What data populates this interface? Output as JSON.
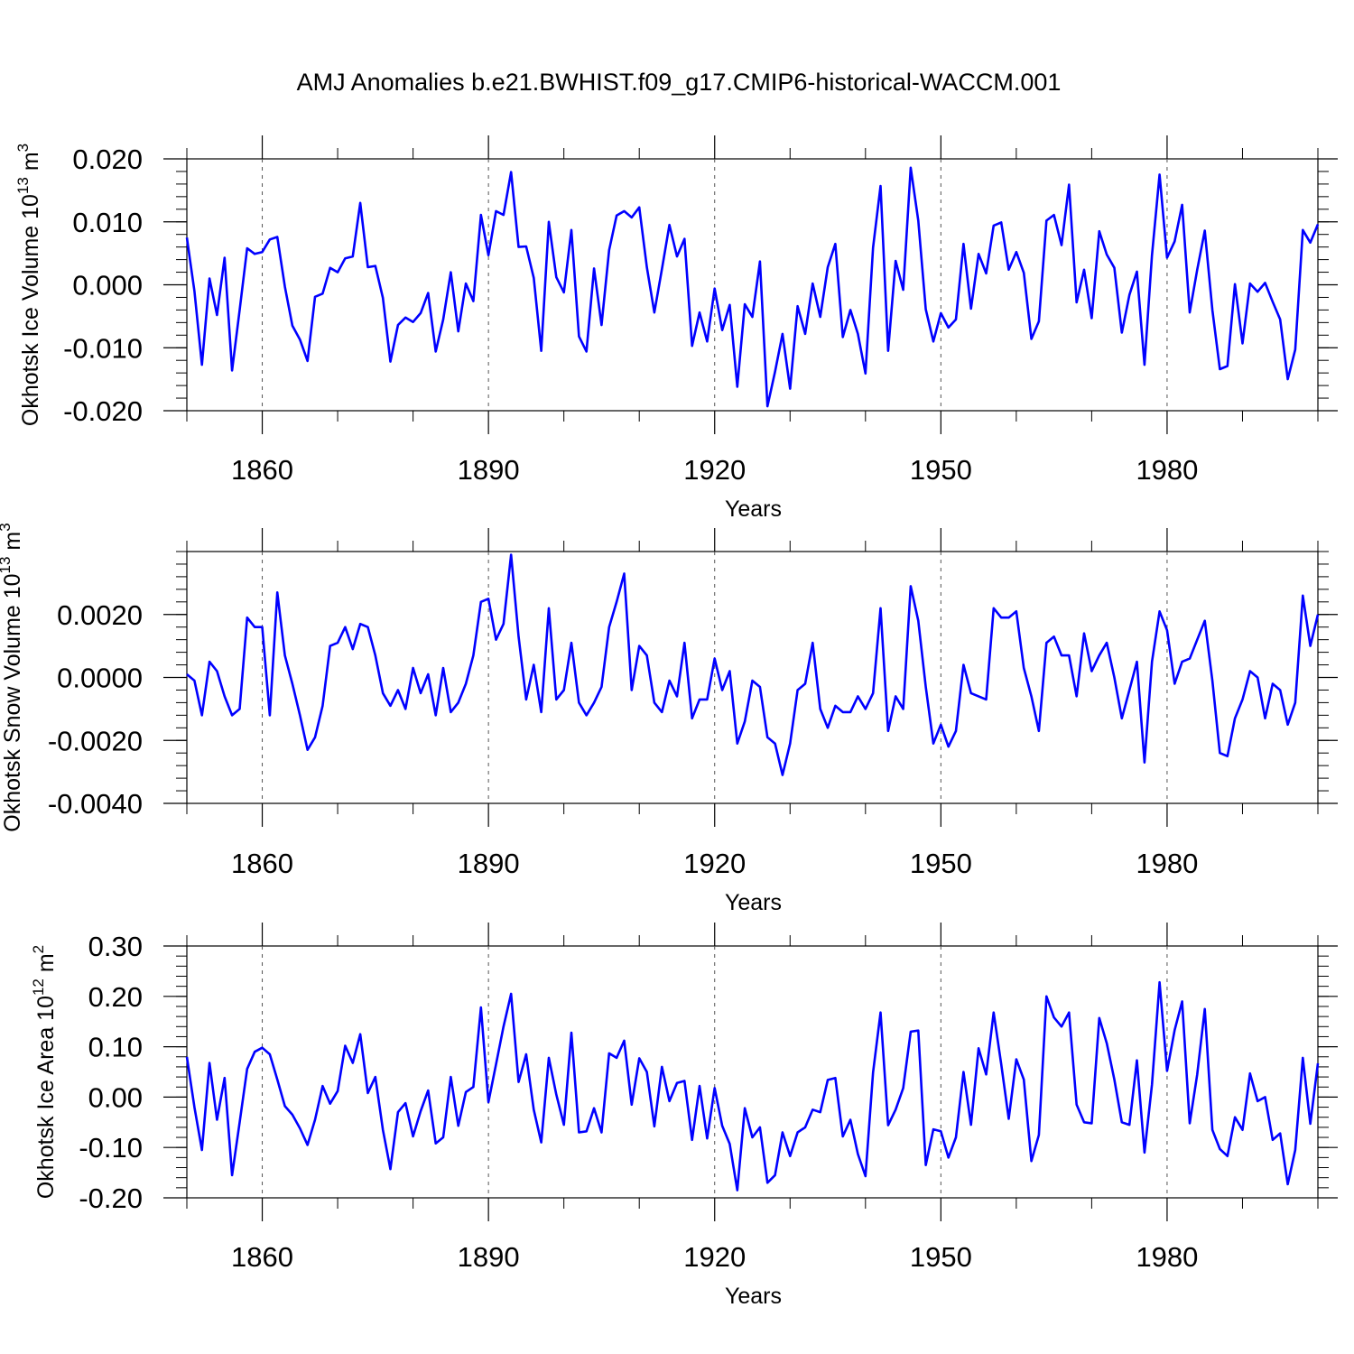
{
  "figure_title": "AMJ Anomalies b.e21.BWHIST.f09_g17.CMIP6-historical-WACCM.001",
  "line_color": "#0000ff",
  "chart_data": [
    {
      "type": "line",
      "ylabel": "Okhotsk Ice Volume",
      "ylabel_unit": "10",
      "ylabel_exp": "13",
      "ylabel_m": "m",
      "ylabel_mexp": "3",
      "xlabel": "Years",
      "xlim": [
        1850,
        2000
      ],
      "ylim": [
        -0.02,
        0.02
      ],
      "xticks": [
        1860,
        1890,
        1920,
        1950,
        1980
      ],
      "xtick_labels": [
        "1860",
        "1890",
        "1920",
        "1950",
        "1980"
      ],
      "yticks": [
        -0.02,
        -0.01,
        0.0,
        0.01,
        0.02
      ],
      "ytick_labels": [
        "-0.020",
        "-0.010",
        "0.000",
        "0.010",
        "0.020"
      ],
      "x_start": 1850,
      "values": [
        0.0075,
        -0.001,
        -0.0127,
        0.001,
        -0.0048,
        0.0043,
        -0.0136,
        -0.004,
        0.0058,
        0.0049,
        0.0052,
        0.0072,
        0.0076,
        -0.0003,
        -0.0065,
        -0.0087,
        -0.0121,
        -0.0019,
        -0.0014,
        0.0027,
        0.002,
        0.0042,
        0.0045,
        0.013,
        0.0028,
        0.003,
        -0.0021,
        -0.0122,
        -0.0064,
        -0.0052,
        -0.0059,
        -0.0045,
        -0.0013,
        -0.0106,
        -0.0055,
        0.002,
        -0.0074,
        0.0002,
        -0.0026,
        0.0111,
        0.0047,
        0.0117,
        0.0111,
        0.0179,
        0.006,
        0.0061,
        0.0011,
        -0.0105,
        0.01,
        0.0012,
        -0.0012,
        0.0087,
        -0.0082,
        -0.0106,
        0.0026,
        -0.0064,
        0.0055,
        0.011,
        0.0117,
        0.0107,
        0.0123,
        0.0028,
        -0.0044,
        0.0025,
        0.0095,
        0.0045,
        0.0073,
        -0.0097,
        -0.0044,
        -0.009,
        -0.0006,
        -0.0072,
        -0.0032,
        -0.0162,
        -0.0031,
        -0.0051,
        0.0037,
        -0.0193,
        -0.0138,
        -0.0078,
        -0.0165,
        -0.0034,
        -0.0078,
        0.0002,
        -0.0051,
        0.0028,
        0.0065,
        -0.0083,
        -0.004,
        -0.0078,
        -0.0141,
        0.0059,
        0.0157,
        -0.0105,
        0.0038,
        -0.0008,
        0.0186,
        0.0102,
        -0.0039,
        -0.009,
        -0.0045,
        -0.0068,
        -0.0055,
        0.0065,
        -0.0038,
        0.0049,
        0.0018,
        0.0094,
        0.0099,
        0.0024,
        0.0052,
        0.0019,
        -0.0086,
        -0.0058,
        0.0102,
        0.0111,
        0.0063,
        0.0159,
        -0.0028,
        0.0024,
        -0.0053,
        0.0085,
        0.0048,
        0.0027,
        -0.0076,
        -0.0016,
        0.0021,
        -0.0127,
        0.0047,
        0.0175,
        0.0043,
        0.0069,
        0.0127,
        -0.0044,
        0.0024,
        0.0086,
        -0.004,
        -0.0134,
        -0.0129,
        0.0001,
        -0.0093,
        0.0002,
        -0.0011,
        0.0003,
        -0.0027,
        -0.0055,
        -0.015,
        -0.0103,
        0.0087,
        0.0067,
        0.0096
      ]
    },
    {
      "type": "line",
      "ylabel": "Okhotsk Snow Volume",
      "ylabel_unit": "10",
      "ylabel_exp": "13",
      "ylabel_m": "m",
      "ylabel_mexp": "3",
      "xlabel": "Years",
      "xlim": [
        1850,
        2000
      ],
      "ylim": [
        -0.004,
        0.004
      ],
      "xticks": [
        1860,
        1890,
        1920,
        1950,
        1980
      ],
      "xtick_labels": [
        "1860",
        "1890",
        "1920",
        "1950",
        "1980"
      ],
      "yticks": [
        -0.004,
        -0.002,
        0.0,
        0.002
      ],
      "ytick_labels": [
        "-0.0040",
        "-0.0020",
        "0.0000",
        "0.0020"
      ],
      "x_start": 1850,
      "values": [
        0.0001,
        -0.0001,
        -0.0012,
        0.0005,
        0.0002,
        -0.0006,
        -0.0012,
        -0.001,
        0.0019,
        0.0016,
        0.0016,
        -0.0012,
        0.0027,
        0.0007,
        -0.0002,
        -0.0012,
        -0.0023,
        -0.0019,
        -0.0009,
        0.001,
        0.0011,
        0.0016,
        0.0009,
        0.0017,
        0.0016,
        0.0007,
        -0.0005,
        -0.0009,
        -0.0004,
        -0.001,
        0.0003,
        -0.0005,
        0.0001,
        -0.0012,
        0.0003,
        -0.0011,
        -0.0008,
        -0.0002,
        0.0007,
        0.0024,
        0.0025,
        0.0012,
        0.0017,
        0.0039,
        0.0013,
        -0.0007,
        0.0004,
        -0.0011,
        0.0022,
        -0.0007,
        -0.0004,
        0.0011,
        -0.0008,
        -0.0012,
        -0.0008,
        -0.0003,
        0.0016,
        0.0024,
        0.0033,
        -0.0004,
        0.001,
        0.0007,
        -0.0008,
        -0.0011,
        -0.0001,
        -0.0006,
        0.0011,
        -0.0013,
        -0.0007,
        -0.0007,
        0.0006,
        -0.0004,
        0.0002,
        -0.0021,
        -0.0014,
        -0.0001,
        -0.0003,
        -0.0019,
        -0.0021,
        -0.0031,
        -0.0021,
        -0.0004,
        -0.0002,
        0.0011,
        -0.001,
        -0.0016,
        -0.0009,
        -0.0011,
        -0.0011,
        -0.0006,
        -0.001,
        -0.0005,
        0.0022,
        -0.0017,
        -0.0006,
        -0.001,
        0.0029,
        0.0018,
        -0.0003,
        -0.0021,
        -0.0015,
        -0.0022,
        -0.0017,
        0.0004,
        -0.0005,
        -0.0006,
        -0.0007,
        0.0022,
        0.0019,
        0.0019,
        0.0021,
        0.0003,
        -0.0006,
        -0.0017,
        0.0011,
        0.0013,
        0.0007,
        0.0007,
        -0.0006,
        0.0014,
        0.0002,
        0.0007,
        0.0011,
        0.0,
        -0.0013,
        -0.0004,
        0.0005,
        -0.0027,
        0.0005,
        0.0021,
        0.0015,
        -0.0002,
        0.0005,
        0.0006,
        0.0012,
        0.0018,
        -0.0001,
        -0.0024,
        -0.0025,
        -0.0013,
        -0.0007,
        0.0002,
        0.0,
        -0.0013,
        -0.0002,
        -0.0004,
        -0.0015,
        -0.0008,
        0.0026,
        0.001,
        0.002
      ]
    },
    {
      "type": "line",
      "ylabel": "Okhotsk Ice Area",
      "ylabel_unit": "10",
      "ylabel_exp": "12",
      "ylabel_m": "m",
      "ylabel_mexp": "2",
      "xlabel": "Years",
      "xlim": [
        1850,
        2000
      ],
      "ylim": [
        -0.2,
        0.3
      ],
      "xticks": [
        1860,
        1890,
        1920,
        1950,
        1980
      ],
      "xtick_labels": [
        "1860",
        "1890",
        "1920",
        "1950",
        "1980"
      ],
      "yticks": [
        -0.2,
        -0.1,
        0.0,
        0.1,
        0.2,
        0.3
      ],
      "ytick_labels": [
        "-0.20",
        "-0.10",
        "0.00",
        "0.10",
        "0.20",
        "0.30"
      ],
      "x_start": 1850,
      "values": [
        0.08,
        -0.02,
        -0.105,
        0.068,
        -0.045,
        0.038,
        -0.155,
        -0.05,
        0.056,
        0.09,
        0.098,
        0.085,
        0.035,
        -0.018,
        -0.035,
        -0.062,
        -0.095,
        -0.045,
        0.022,
        -0.013,
        0.012,
        0.102,
        0.068,
        0.125,
        0.008,
        0.04,
        -0.065,
        -0.143,
        -0.03,
        -0.012,
        -0.078,
        -0.028,
        0.013,
        -0.092,
        -0.08,
        0.04,
        -0.057,
        0.01,
        0.02,
        0.178,
        -0.01,
        0.065,
        0.14,
        0.205,
        0.03,
        0.085,
        -0.025,
        -0.09,
        0.078,
        0.005,
        -0.055,
        0.128,
        -0.07,
        -0.068,
        -0.022,
        -0.07,
        0.087,
        0.078,
        0.112,
        -0.015,
        0.077,
        0.05,
        -0.058,
        0.06,
        -0.008,
        0.028,
        0.032,
        -0.085,
        0.022,
        -0.082,
        0.018,
        -0.057,
        -0.093,
        -0.185,
        -0.022,
        -0.08,
        -0.06,
        -0.17,
        -0.155,
        -0.07,
        -0.117,
        -0.07,
        -0.06,
        -0.025,
        -0.03,
        0.034,
        0.038,
        -0.078,
        -0.045,
        -0.113,
        -0.157,
        0.049,
        0.168,
        -0.056,
        -0.025,
        0.018,
        0.13,
        0.132,
        -0.135,
        -0.064,
        -0.068,
        -0.12,
        -0.08,
        0.05,
        -0.055,
        0.097,
        0.045,
        0.168,
        0.065,
        -0.043,
        0.075,
        0.035,
        -0.127,
        -0.075,
        0.2,
        0.158,
        0.14,
        0.168,
        -0.015,
        -0.05,
        -0.052,
        0.157,
        0.107,
        0.035,
        -0.05,
        -0.055,
        0.073,
        -0.11,
        0.025,
        0.228,
        0.052,
        0.133,
        0.19,
        -0.052,
        0.045,
        0.175,
        -0.065,
        -0.103,
        -0.117,
        -0.04,
        -0.065,
        0.047,
        -0.008,
        0.0,
        -0.085,
        -0.072,
        -0.173,
        -0.105,
        0.078,
        -0.053,
        0.067
      ]
    }
  ]
}
